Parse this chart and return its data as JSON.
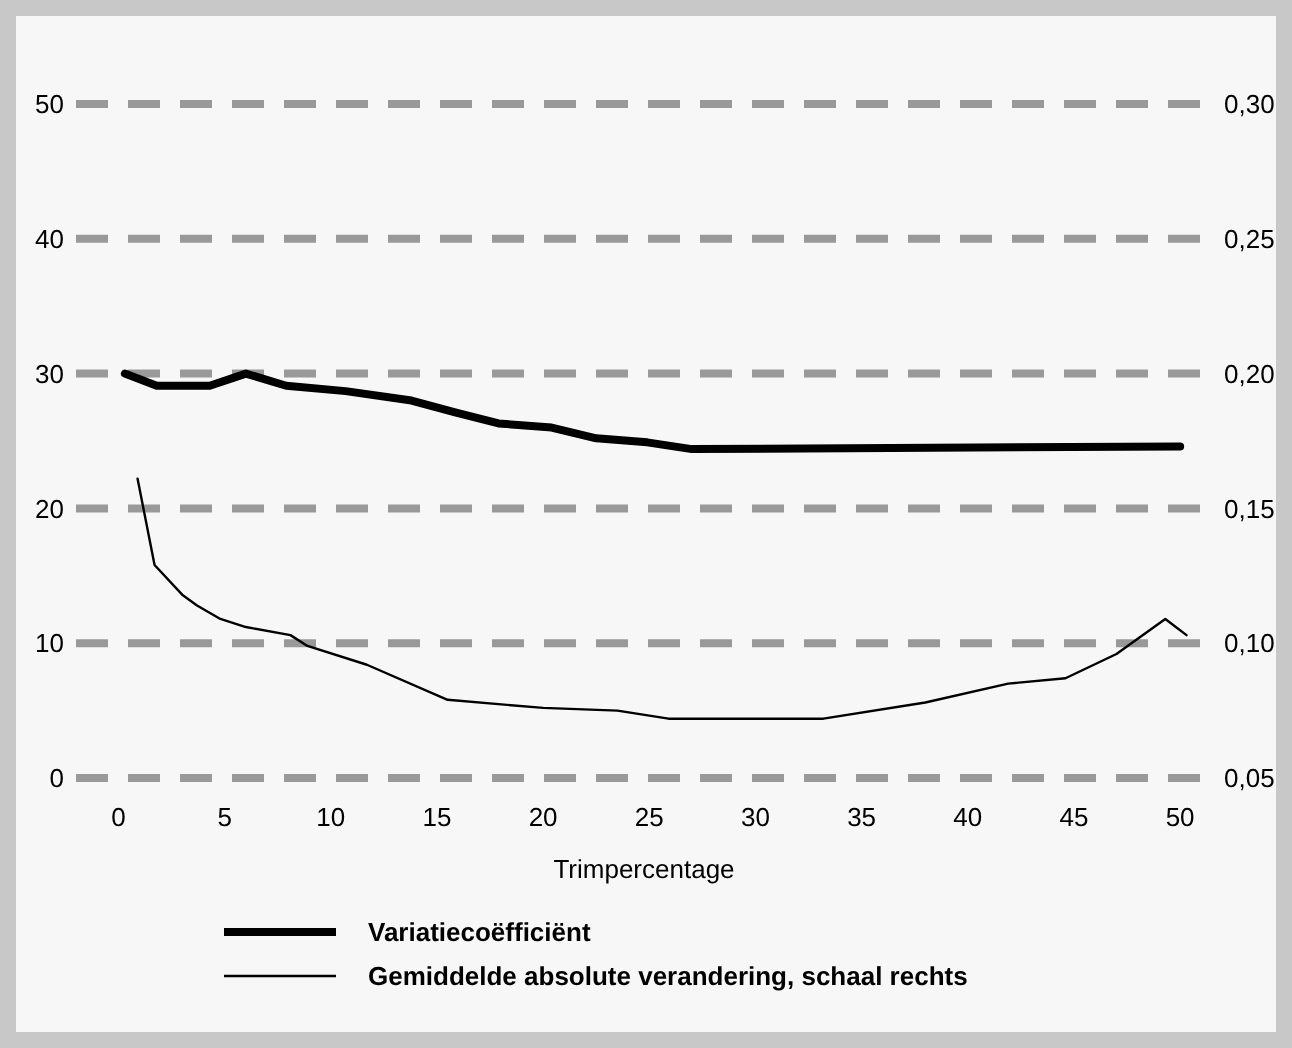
{
  "chart_data": {
    "type": "line",
    "xlabel": "Trimpercentage",
    "xlim": [
      -2,
      51.5
    ],
    "xticks": [
      0,
      5,
      10,
      15,
      20,
      25,
      30,
      35,
      40,
      45,
      50
    ],
    "ylim": [
      0,
      50
    ],
    "yticks": [
      0,
      10,
      20,
      30,
      40,
      50
    ],
    "y2lim": [
      0.05,
      0.3
    ],
    "y2ticks": [
      {
        "value": 0.05,
        "label": "0,05"
      },
      {
        "value": 0.1,
        "label": "0,10"
      },
      {
        "value": 0.15,
        "label": "0,15"
      },
      {
        "value": 0.2,
        "label": "0,20"
      },
      {
        "value": 0.25,
        "label": "0,25"
      },
      {
        "value": 0.3,
        "label": "0,30"
      }
    ],
    "grid": "y",
    "legend": "bottom",
    "series": [
      {
        "name": "Variatiecoëfficiënt",
        "color": "#000000",
        "x": [
          0.3,
          1.8,
          4.3,
          6,
          7.9,
          10.7,
          13.8,
          15.9,
          17.9,
          20.4,
          22.5,
          24.9,
          27,
          50
        ],
        "values": [
          30,
          29.1,
          29.1,
          30,
          29.1,
          28.7,
          28,
          27.1,
          26.3,
          26,
          25.2,
          24.9,
          24.4,
          24.6
        ]
      },
      {
        "name": "Gemiddelde absolute verandering, schaal rechts",
        "color": "#000000",
        "axis": "y2",
        "x": [
          0.9,
          1.7,
          3,
          3.7,
          4.8,
          6,
          8.1,
          8.9,
          11.7,
          15.5,
          20,
          23.5,
          25.9,
          33.2,
          38,
          41.9,
          44.6,
          47,
          49.3,
          50.3
        ],
        "values": [
          0.161,
          0.129,
          0.118,
          0.114,
          0.109,
          0.106,
          0.103,
          0.099,
          0.092,
          0.079,
          0.076,
          0.075,
          0.072,
          0.072,
          0.078,
          0.085,
          0.087,
          0.096,
          0.109,
          0.103
        ]
      }
    ]
  }
}
